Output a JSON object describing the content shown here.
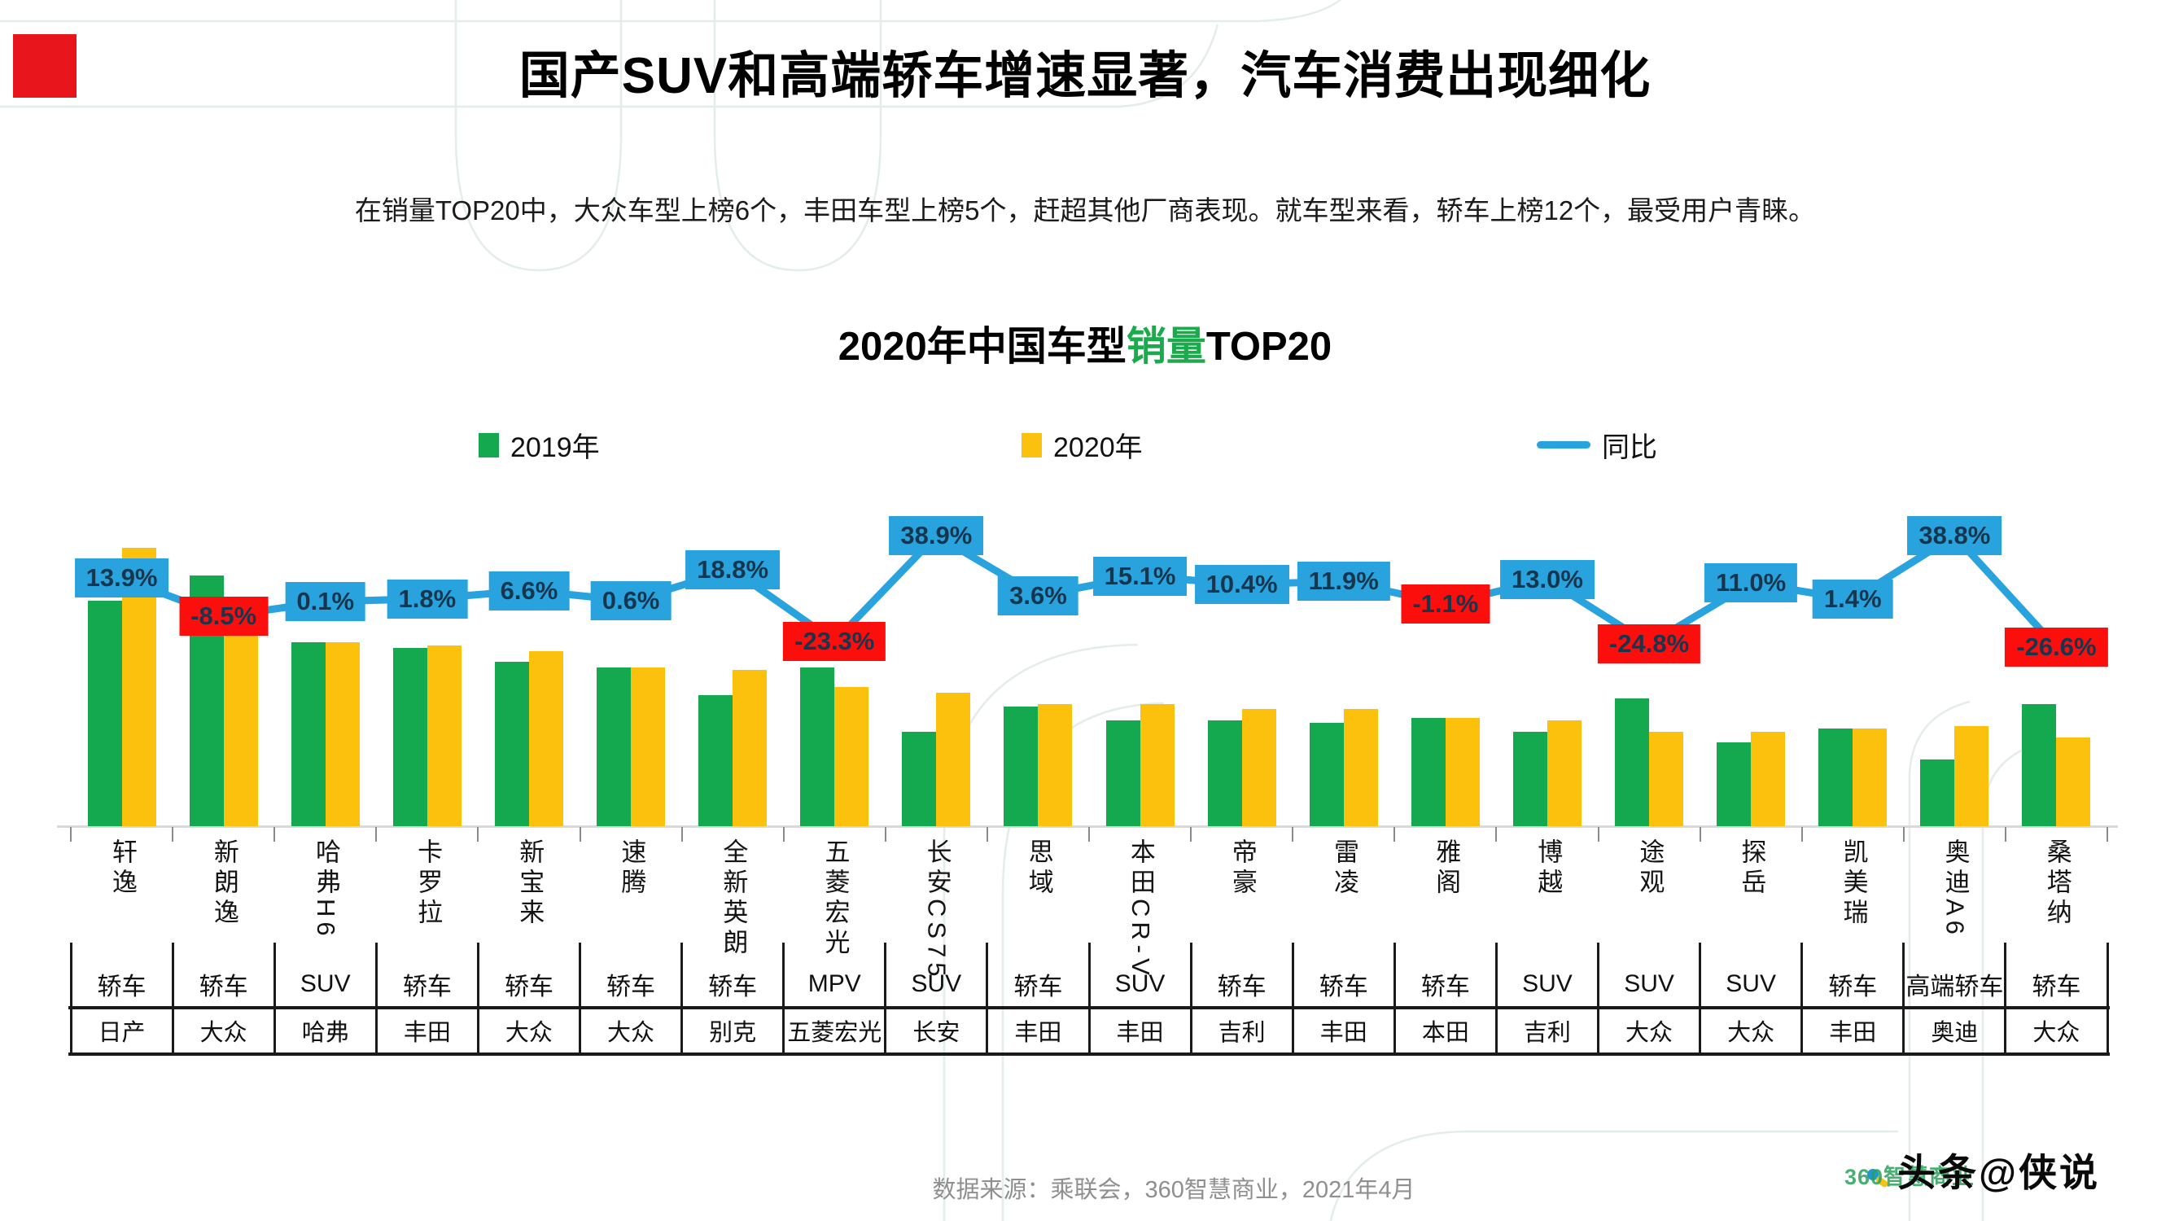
{
  "page": {
    "title": "国产SUV和高端轿车增速显著，汽车消费出现细化",
    "subtitle": "在销量TOP20中，大众车型上榜6个，丰田车型上榜5个，赶超其他厂商表现。就车型来看，轿车上榜12个，最受用户青睐。",
    "footer_source": "数据来源：乘联会，360智慧商业，2021年4月",
    "watermark_text": "头条@侠说",
    "watermark_logo_text": "360智慧商业"
  },
  "chart": {
    "title_prefix": "2020年中国车型",
    "title_highlight": "销量",
    "title_suffix": "TOP20",
    "legend": [
      {
        "label": "2019年",
        "marker": "square",
        "color": "#14A94F"
      },
      {
        "label": "2020年",
        "marker": "square",
        "color": "#FCC10D"
      },
      {
        "label": "同比",
        "marker": "line",
        "color": "#29A3DE"
      }
    ]
  },
  "colors": {
    "green_2019": "#14A94F",
    "gold_2020": "#FCC10D",
    "line_blue": "#29A3DE",
    "label_blue_bg": "#29A3DE",
    "label_red_bg": "#FB0E0C",
    "label_text": "#17364E",
    "title_highlight_green": "#1BAB4D",
    "accent_red_square": "#E9151D",
    "axis_gray": "#D9D9D9",
    "footer_gray": "#8F8F8F",
    "table_border": "#1A1A1A",
    "watermark_green": "#2BA05B"
  },
  "chart_data": {
    "type": "bar",
    "subtype": "grouped bars (2019 vs 2020 sales, no y-axis scale shown) + YoY line with data labels",
    "title": "2020年中国车型销量TOP20",
    "grid": false,
    "legend_position": "top",
    "categories": [
      "轩逸",
      "新朗逸",
      "哈弗H6",
      "卡罗拉",
      "新宝来",
      "速腾",
      "全新英朗",
      "五菱宏光",
      "长安CS75",
      "思域",
      "本田CR-V",
      "帝豪",
      "雷凌",
      "雅阁",
      "博越",
      "途观",
      "探岳",
      "凯美瑞",
      "奥迪A6",
      "桑塔纳"
    ],
    "series": [
      {
        "name": "2019年",
        "kind": "bar",
        "unit": "relative sales index (estimated from bar heights, max=100)",
        "values": [
          81,
          90,
          66,
          64,
          59,
          57,
          47,
          57,
          34,
          43,
          38,
          38,
          37,
          39,
          34,
          46,
          30,
          35,
          24,
          44
        ]
      },
      {
        "name": "2020年",
        "kind": "bar",
        "unit": "relative sales index (estimated from bar heights, max=100)",
        "values": [
          100,
          82,
          66,
          65,
          63,
          57,
          56,
          50,
          48,
          44,
          44,
          42,
          42,
          39,
          38,
          34,
          34,
          35,
          36,
          32
        ]
      },
      {
        "name": "同比",
        "kind": "line",
        "unit": "percent YoY",
        "values": [
          13.9,
          -8.5,
          0.1,
          1.8,
          6.6,
          0.6,
          18.8,
          -23.3,
          38.9,
          3.6,
          15.1,
          10.4,
          11.9,
          -1.1,
          13.0,
          -24.8,
          11.0,
          1.4,
          38.8,
          -26.6
        ],
        "labels": [
          "13.9%",
          "-8.5%",
          "0.1%",
          "1.8%",
          "6.6%",
          "0.6%",
          "18.8%",
          "-23.3%",
          "38.9%",
          "3.6%",
          "15.1%",
          "10.4%",
          "11.9%",
          "-1.1%",
          "13.0%",
          "-24.8%",
          "11.0%",
          "1.4%",
          "38.8%",
          "-26.6%"
        ]
      }
    ],
    "category_type_row": [
      "轿车",
      "轿车",
      "SUV",
      "轿车",
      "轿车",
      "轿车",
      "轿车",
      "MPV",
      "SUV",
      "轿车",
      "SUV",
      "轿车",
      "轿车",
      "轿车",
      "SUV",
      "SUV",
      "SUV",
      "轿车",
      "高端轿车",
      "轿车"
    ],
    "brand_row": [
      "日产",
      "大众",
      "哈弗",
      "丰田",
      "大众",
      "大众",
      "别克",
      "五菱宏光",
      "长安",
      "丰田",
      "丰田",
      "吉利",
      "丰田",
      "本田",
      "吉利",
      "大众",
      "大众",
      "丰田",
      "奥迪",
      "大众"
    ]
  }
}
